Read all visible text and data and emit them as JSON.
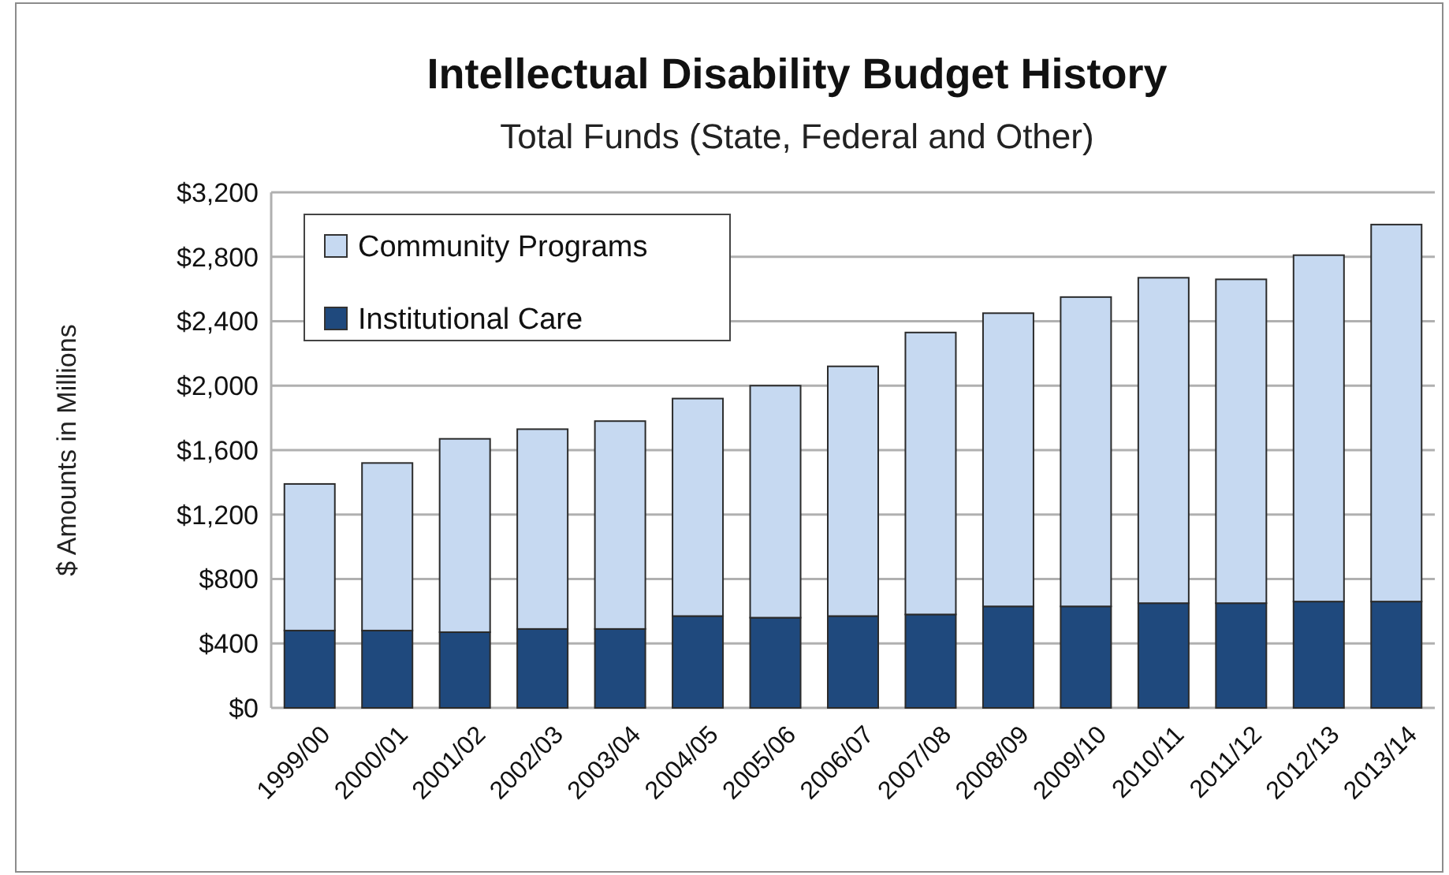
{
  "chart_data": {
    "type": "bar",
    "title": "Intellectual Disability Budget History",
    "subtitle": "Total Funds (State, Federal and Other)",
    "ylabel": "$ Amounts in Millions",
    "categories": [
      "1999/00",
      "2000/01",
      "2001/02",
      "2002/03",
      "2003/04",
      "2004/05",
      "2005/06",
      "2006/07",
      "2007/08",
      "2008/09",
      "2009/10",
      "2010/11",
      "2011/12",
      "2012/13",
      "2013/14"
    ],
    "stacked": true,
    "series": [
      {
        "name": "Institutional Care",
        "color": "#1f497d",
        "values": [
          480,
          480,
          470,
          490,
          490,
          570,
          560,
          570,
          580,
          630,
          630,
          650,
          650,
          660,
          660
        ]
      },
      {
        "name": "Community Programs",
        "color": "#c6d9f1",
        "values": [
          910,
          1040,
          1200,
          1240,
          1290,
          1350,
          1440,
          1550,
          1750,
          1820,
          1920,
          2020,
          2010,
          2150,
          2340
        ]
      }
    ],
    "ylim": [
      0,
      3200
    ],
    "yticks": [
      {
        "value": 0,
        "label": "$0"
      },
      {
        "value": 400,
        "label": "$400"
      },
      {
        "value": 800,
        "label": "$800"
      },
      {
        "value": 1200,
        "label": "$1,200"
      },
      {
        "value": 1600,
        "label": "$1,600"
      },
      {
        "value": 2000,
        "label": "$2,000"
      },
      {
        "value": 2400,
        "label": "$2,400"
      },
      {
        "value": 2800,
        "label": "$2,800"
      },
      {
        "value": 3200,
        "label": "$3,200"
      }
    ],
    "grid": "y",
    "legend": "top left"
  }
}
